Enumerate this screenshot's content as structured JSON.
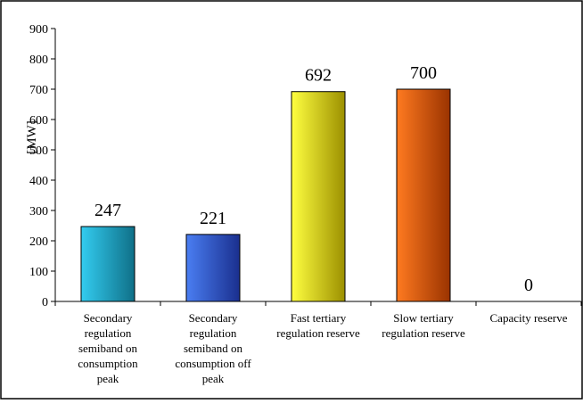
{
  "chart_data": {
    "type": "bar",
    "title": "",
    "ylabel": "[MW]",
    "xlabel": "",
    "ylim": [
      0,
      900
    ],
    "yticks": [
      0,
      100,
      200,
      300,
      400,
      500,
      600,
      700,
      800,
      900
    ],
    "grid": false,
    "legend": "none",
    "categories": [
      [
        "Secondary",
        "regulation",
        "semiband on",
        "consumption",
        "peak"
      ],
      [
        "Secondary",
        "regulation",
        "semiband on",
        "consumption off",
        "peak"
      ],
      [
        "Fast tertiary",
        "regulation reserve"
      ],
      [
        "Slow tertiary",
        "regulation reserve"
      ],
      [
        "Capacity reserve"
      ]
    ],
    "values": [
      247,
      221,
      692,
      700,
      0
    ],
    "data_labels": [
      "247",
      "221",
      "692",
      "700",
      "0"
    ],
    "colors": [
      [
        "#33ccf0",
        "#0f7088"
      ],
      [
        "#4a7ef2",
        "#1a2f8e"
      ],
      [
        "#ffff40",
        "#9c9000"
      ],
      [
        "#ff7a20",
        "#9a3300"
      ],
      [
        "#cccccc",
        "#666666"
      ]
    ]
  }
}
